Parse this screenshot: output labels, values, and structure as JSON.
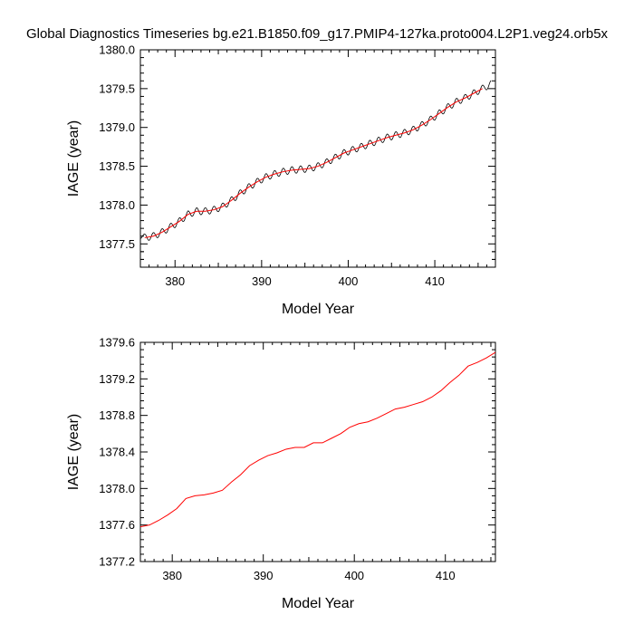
{
  "title": "Global Diagnostics Timeseries bg.e21.B1850.f09_g17.PMIP4-127ka.proto004.L2P1.veg24.orb5x",
  "chart_data": [
    {
      "type": "line",
      "xlabel": "Model Year",
      "ylabel": "IAGE (year)",
      "xlim": [
        376,
        417
      ],
      "ylim": [
        1377.2,
        1380.0
      ],
      "xticks": [
        380,
        390,
        400,
        410
      ],
      "xtick_labels": [
        "380",
        "390",
        "400",
        "410"
      ],
      "yticks": [
        1377.5,
        1378.0,
        1378.5,
        1379.0,
        1379.5,
        1380.0
      ],
      "ytick_labels": [
        "1377.5",
        "1378.0",
        "1378.5",
        "1379.0",
        "1379.5",
        "1380.0"
      ],
      "series": [
        {
          "color": "#000000",
          "style": "monthly",
          "seasonal_amplitude": 0.045,
          "x": [
            376,
            376.5,
            377.5,
            378.5,
            379.5,
            380.5,
            381.5,
            382.5,
            383.5,
            384.5,
            385.5,
            386.5,
            387.5,
            388.5,
            389.5,
            390.5,
            391.5,
            392.5,
            393.5,
            394.5,
            395.5,
            396.5,
            397.5,
            398.5,
            399.5,
            400.5,
            401.5,
            402.5,
            403.5,
            404.5,
            405.5,
            406.5,
            407.5,
            408.5,
            409.5,
            410.5,
            411.5,
            412.5,
            413.5,
            414.5,
            415.5,
            416.5
          ],
          "values": [
            1377.62,
            1377.58,
            1377.6,
            1377.65,
            1377.72,
            1377.79,
            1377.88,
            1377.92,
            1377.92,
            1377.94,
            1377.98,
            1378.06,
            1378.15,
            1378.23,
            1378.3,
            1378.36,
            1378.4,
            1378.43,
            1378.45,
            1378.46,
            1378.47,
            1378.5,
            1378.55,
            1378.61,
            1378.67,
            1378.71,
            1378.75,
            1378.79,
            1378.83,
            1378.87,
            1378.9,
            1378.93,
            1378.97,
            1379.03,
            1379.1,
            1379.18,
            1379.26,
            1379.33,
            1379.38,
            1379.44,
            1379.5,
            1379.56
          ]
        },
        {
          "color": "#ff0000",
          "style": "annual",
          "x": [
            376.5,
            377.5,
            378.5,
            379.5,
            380.5,
            381.5,
            382.5,
            383.5,
            384.5,
            385.5,
            386.5,
            387.5,
            388.5,
            389.5,
            390.5,
            391.5,
            392.5,
            393.5,
            394.5,
            395.5,
            396.5,
            397.5,
            398.5,
            399.5,
            400.5,
            401.5,
            402.5,
            403.5,
            404.5,
            405.5,
            406.5,
            407.5,
            408.5,
            409.5,
            410.5,
            411.5,
            412.5,
            413.5,
            414.5,
            415.5
          ],
          "values": [
            1377.58,
            1377.6,
            1377.65,
            1377.72,
            1377.79,
            1377.88,
            1377.92,
            1377.92,
            1377.94,
            1377.98,
            1378.06,
            1378.15,
            1378.23,
            1378.3,
            1378.36,
            1378.4,
            1378.43,
            1378.45,
            1378.46,
            1378.47,
            1378.5,
            1378.55,
            1378.61,
            1378.67,
            1378.71,
            1378.75,
            1378.79,
            1378.83,
            1378.87,
            1378.9,
            1378.93,
            1378.97,
            1379.03,
            1379.1,
            1379.18,
            1379.26,
            1379.33,
            1379.38,
            1379.44,
            1379.5
          ]
        }
      ]
    },
    {
      "type": "line",
      "xlabel": "Model Year",
      "ylabel": "IAGE (year)",
      "xlim": [
        376.5,
        415.5
      ],
      "ylim": [
        1377.2,
        1379.6
      ],
      "xticks": [
        380,
        390,
        400,
        410
      ],
      "xtick_labels": [
        "380",
        "390",
        "400",
        "410"
      ],
      "yticks": [
        1377.2,
        1377.6,
        1378.0,
        1378.4,
        1378.8,
        1379.2,
        1379.6
      ],
      "ytick_labels": [
        "1377.2",
        "1377.6",
        "1378.0",
        "1378.4",
        "1378.8",
        "1379.2",
        "1379.6"
      ],
      "series": [
        {
          "color": "#ff0000",
          "style": "annual",
          "x": [
            376.5,
            377.5,
            378.5,
            379.5,
            380.5,
            381.5,
            382.5,
            383.5,
            384.5,
            385.5,
            386.5,
            387.5,
            388.5,
            389.5,
            390.5,
            391.5,
            392.5,
            393.5,
            394.5,
            395.5,
            396.5,
            397.5,
            398.5,
            399.5,
            400.5,
            401.5,
            402.5,
            403.5,
            404.5,
            405.5,
            406.5,
            407.5,
            408.5,
            409.5,
            410.5,
            411.5,
            412.5,
            413.5,
            414.5,
            415.5
          ],
          "values": [
            1377.58,
            1377.6,
            1377.65,
            1377.71,
            1377.78,
            1377.89,
            1377.92,
            1377.93,
            1377.95,
            1377.98,
            1378.07,
            1378.15,
            1378.25,
            1378.31,
            1378.36,
            1378.39,
            1378.43,
            1378.45,
            1378.45,
            1378.5,
            1378.5,
            1378.55,
            1378.6,
            1378.67,
            1378.71,
            1378.73,
            1378.77,
            1378.82,
            1378.87,
            1378.89,
            1378.92,
            1378.95,
            1379.0,
            1379.07,
            1379.16,
            1379.24,
            1379.34,
            1379.38,
            1379.43,
            1379.49
          ]
        }
      ]
    }
  ]
}
